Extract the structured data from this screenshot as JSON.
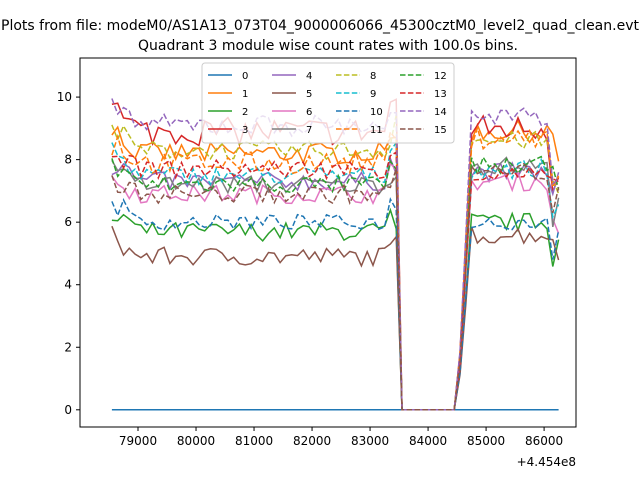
{
  "chart_data": {
    "type": "line",
    "suptitle": "Plots from file: modeM0/AS1A13_073T04_9000006066_45300cztM0_level2_quad_clean.evt",
    "title": "Quadrant 3 module wise count rates with 100.0s bins.",
    "xlabel": "",
    "ylabel": "",
    "x_offset_label": "+4.454e8",
    "xlim": [
      78000,
      86550
    ],
    "ylim": [
      -0.55,
      11.25
    ],
    "x_ticks": [
      79000,
      80000,
      81000,
      82000,
      83000,
      84000,
      85000,
      86000
    ],
    "y_ticks": [
      0,
      2,
      4,
      6,
      8,
      10
    ],
    "grid": false,
    "legend": {
      "placement": "upper-center",
      "columns": 4
    },
    "x_start": 78550,
    "bin": 100,
    "gap_start": 83500,
    "gap_end": 84500,
    "series": [
      {
        "name": "0",
        "color": "#1f77b4",
        "dash": "solid",
        "level1": 0,
        "level2": 0,
        "amp": 0
      },
      {
        "name": "1",
        "color": "#ff7f0e",
        "dash": "solid",
        "level1": 8.2,
        "level2": 8.9,
        "amp": 0.35
      },
      {
        "name": "2",
        "color": "#2ca02c",
        "dash": "solid",
        "level1": 5.7,
        "level2": 6.0,
        "amp": 0.3
      },
      {
        "name": "3",
        "color": "#d62728",
        "dash": "solid",
        "level1": 8.9,
        "level2": 9.0,
        "amp": 0.45
      },
      {
        "name": "4",
        "color": "#9467bd",
        "dash": "solid",
        "level1": 7.3,
        "level2": 7.6,
        "amp": 0.3
      },
      {
        "name": "5",
        "color": "#8c564b",
        "dash": "solid",
        "level1": 4.9,
        "level2": 5.6,
        "amp": 0.3
      },
      {
        "name": "6",
        "color": "#e377c2",
        "dash": "solid",
        "level1": 6.9,
        "level2": 7.3,
        "amp": 0.3
      },
      {
        "name": "7",
        "color": "#7f7f7f",
        "dash": "solid",
        "level1": 7.2,
        "level2": 7.8,
        "amp": 0.3
      },
      {
        "name": "8",
        "color": "#bcbd22",
        "dash": "dashed",
        "level1": 8.3,
        "level2": 8.6,
        "amp": 0.3
      },
      {
        "name": "9",
        "color": "#17becf",
        "dash": "dashed",
        "level1": 7.5,
        "level2": 7.7,
        "amp": 0.3
      },
      {
        "name": "10",
        "color": "#1f77b4",
        "dash": "dashed",
        "level1": 6.0,
        "level2": 6.0,
        "amp": 0.25
      },
      {
        "name": "11",
        "color": "#ff7f0e",
        "dash": "dashed",
        "level1": 7.9,
        "level2": 8.7,
        "amp": 0.35
      },
      {
        "name": "12",
        "color": "#2ca02c",
        "dash": "dashed",
        "level1": 7.2,
        "level2": 7.8,
        "amp": 0.3
      },
      {
        "name": "13",
        "color": "#d62728",
        "dash": "dashed",
        "level1": 7.7,
        "level2": 7.5,
        "amp": 0.3
      },
      {
        "name": "14",
        "color": "#9467bd",
        "dash": "dashed",
        "level1": 9.1,
        "level2": 9.3,
        "amp": 0.35
      },
      {
        "name": "15",
        "color": "#8c564b",
        "dash": "dashed",
        "level1": 6.9,
        "level2": 7.6,
        "amp": 0.3
      }
    ]
  }
}
